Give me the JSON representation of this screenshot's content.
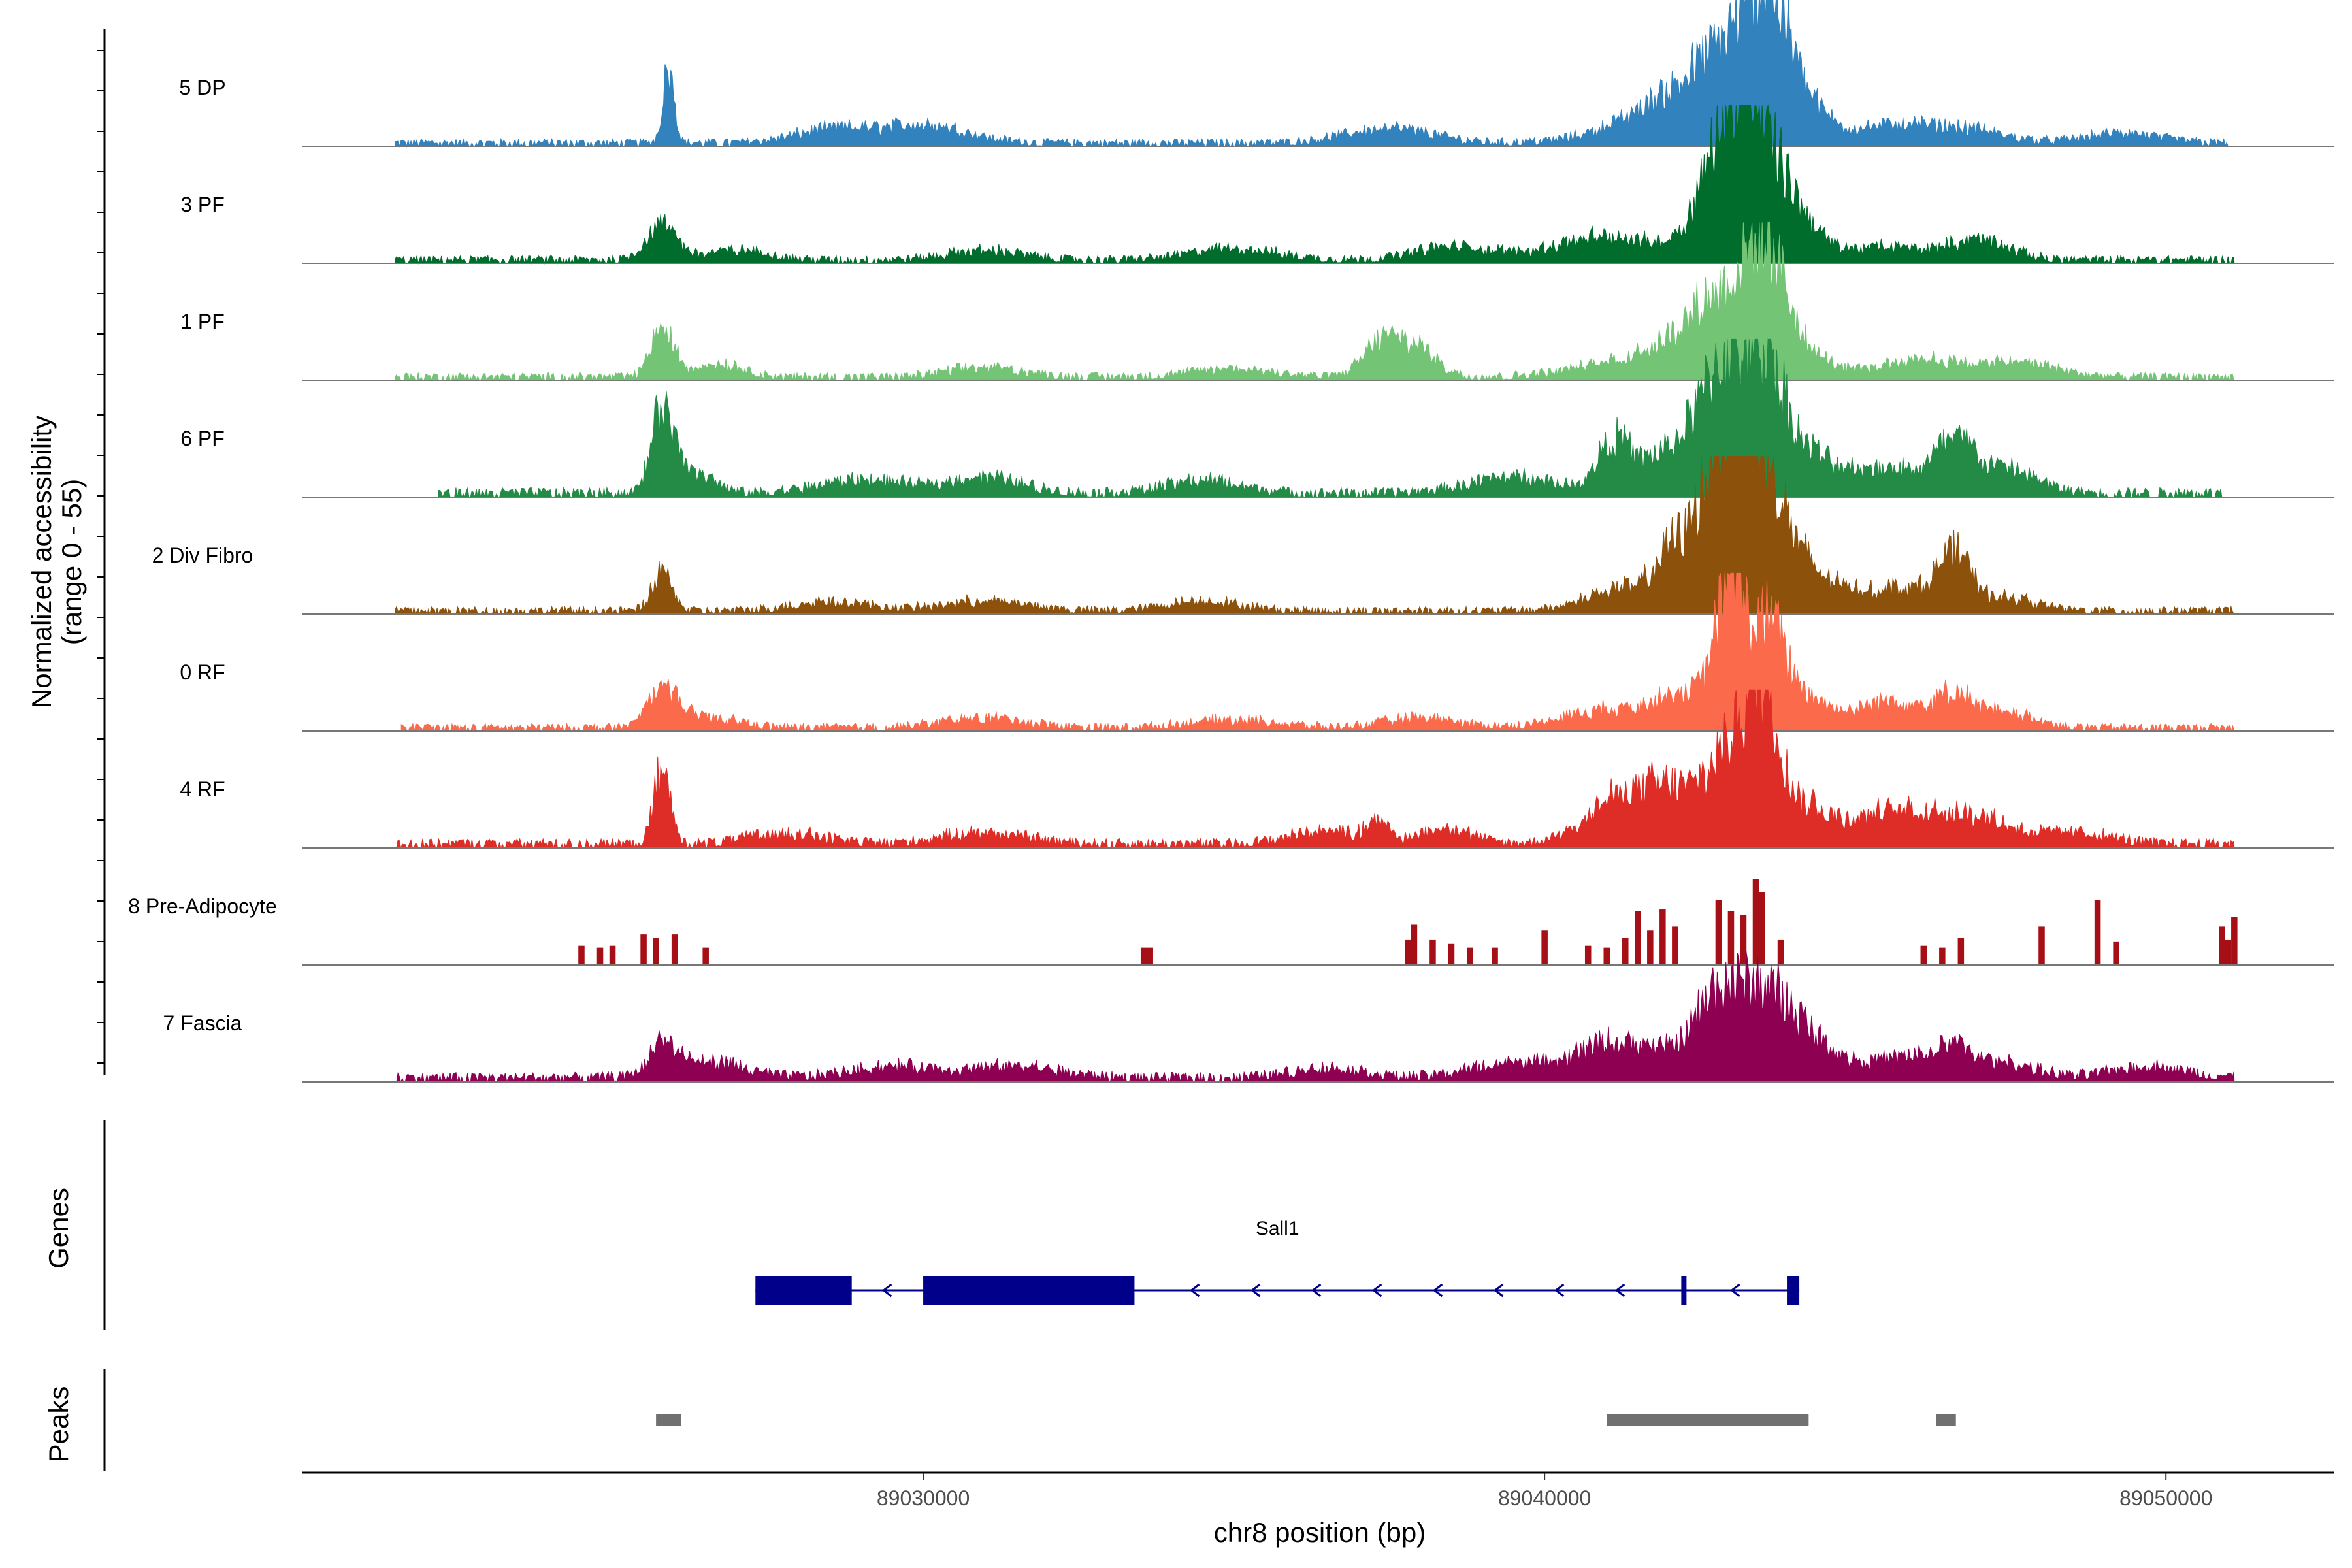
{
  "chart_data": {
    "type": "area",
    "subtype": "genome-coverage-track",
    "ylabel_lines": [
      "Normalized accessibility",
      "(range 0 - 55)"
    ],
    "y_range": [
      0,
      55
    ],
    "xlabel": "chr8 position (bp)",
    "x_range": [
      89020000,
      89052700
    ],
    "x_ticks": [
      {
        "value": 89030000,
        "label": "89030000"
      },
      {
        "value": 89040000,
        "label": "89040000"
      },
      {
        "value": 89050000,
        "label": "89050000"
      }
    ],
    "tracks": [
      {
        "name": "5 DP",
        "color": "#3182bd",
        "range": [
          89021500,
          89051000
        ],
        "peaks": [
          [
            89025900,
            45,
            90
          ],
          [
            89028500,
            8,
            600
          ],
          [
            89030000,
            11,
            700
          ],
          [
            89037500,
            9,
            700
          ],
          [
            89042000,
            18,
            900
          ],
          [
            89042800,
            27,
            700
          ],
          [
            89043300,
            32,
            500
          ],
          [
            89043600,
            40,
            300
          ],
          [
            89044000,
            22,
            500
          ],
          [
            89045600,
            10,
            600
          ],
          [
            89046800,
            8,
            600
          ],
          [
            89049300,
            6,
            600
          ]
        ],
        "noise": 4
      },
      {
        "name": "3 PF",
        "color": "#006d2c",
        "range": [
          89021500,
          89051100
        ],
        "peaks": [
          [
            89025800,
            20,
            250
          ],
          [
            89027000,
            6,
            500
          ],
          [
            89031000,
            6,
            600
          ],
          [
            89035000,
            7,
            700
          ],
          [
            89038500,
            8,
            600
          ],
          [
            89041000,
            14,
            900
          ],
          [
            89042800,
            45,
            400
          ],
          [
            89043100,
            52,
            300
          ],
          [
            89043500,
            47,
            350
          ],
          [
            89044000,
            26,
            400
          ],
          [
            89045500,
            8,
            600
          ],
          [
            89047000,
            12,
            500
          ]
        ],
        "noise": 4
      },
      {
        "name": "1 PF",
        "color": "#74c476",
        "range": [
          89021500,
          89051100
        ],
        "peaks": [
          [
            89025800,
            30,
            180
          ],
          [
            89026700,
            8,
            400
          ],
          [
            89031000,
            6,
            600
          ],
          [
            89035000,
            5,
            700
          ],
          [
            89037400,
            22,
            300
          ],
          [
            89038000,
            16,
            300
          ],
          [
            89041500,
            10,
            900
          ],
          [
            89042300,
            18,
            500
          ],
          [
            89042800,
            32,
            350
          ],
          [
            89043300,
            45,
            250
          ],
          [
            89043700,
            50,
            250
          ],
          [
            89044100,
            16,
            450
          ],
          [
            89046000,
            11,
            600
          ],
          [
            89047600,
            9,
            600
          ]
        ],
        "noise": 4
      },
      {
        "name": "6 PF",
        "color": "#238b45",
        "range": [
          89022200,
          89050900
        ],
        "peaks": [
          [
            89025800,
            50,
            170
          ],
          [
            89026300,
            14,
            300
          ],
          [
            89029000,
            8,
            700
          ],
          [
            89031000,
            10,
            600
          ],
          [
            89034500,
            8,
            600
          ],
          [
            89039500,
            10,
            700
          ],
          [
            89041100,
            30,
            250
          ],
          [
            89041800,
            18,
            400
          ],
          [
            89042500,
            33,
            350
          ],
          [
            89042900,
            44,
            300
          ],
          [
            89043200,
            37,
            300
          ],
          [
            89043600,
            57,
            250
          ],
          [
            89044100,
            27,
            450
          ],
          [
            89045500,
            16,
            600
          ],
          [
            89046600,
            27,
            300
          ],
          [
            89047400,
            15,
            500
          ]
        ],
        "noise": 5
      },
      {
        "name": "2 Div Fibro",
        "color": "#8c510a",
        "range": [
          89021500,
          89051100
        ],
        "peaks": [
          [
            89025800,
            26,
            160
          ],
          [
            89028500,
            6,
            600
          ],
          [
            89031000,
            6,
            700
          ],
          [
            89034500,
            6,
            600
          ],
          [
            89041300,
            14,
            600
          ],
          [
            89042100,
            33,
            280
          ],
          [
            89042700,
            52,
            280
          ],
          [
            89043000,
            78,
            280
          ],
          [
            89043400,
            70,
            280
          ],
          [
            89043800,
            38,
            350
          ],
          [
            89044500,
            16,
            500
          ],
          [
            89045800,
            14,
            500
          ],
          [
            89046600,
            31,
            250
          ],
          [
            89047400,
            8,
            500
          ]
        ],
        "noise": 4
      },
      {
        "name": "0 RF",
        "color": "#fb6a4a",
        "range": [
          89021600,
          89051100
        ],
        "peaks": [
          [
            89025800,
            25,
            220
          ],
          [
            89026500,
            7,
            500
          ],
          [
            89031000,
            6,
            700
          ],
          [
            89035000,
            5,
            700
          ],
          [
            89038000,
            6,
            600
          ],
          [
            89041000,
            11,
            700
          ],
          [
            89042100,
            16,
            400
          ],
          [
            89042900,
            26,
            350
          ],
          [
            89043000,
            72,
            200
          ],
          [
            89043600,
            52,
            250
          ],
          [
            89044100,
            21,
            450
          ],
          [
            89045600,
            17,
            500
          ],
          [
            89046600,
            17,
            300
          ],
          [
            89047400,
            9,
            500
          ]
        ],
        "noise": 4
      },
      {
        "name": "4 RF",
        "color": "#de2d26",
        "range": [
          89021500,
          89051100
        ],
        "peaks": [
          [
            89025800,
            45,
            130
          ],
          [
            89027800,
            7,
            600
          ],
          [
            89031000,
            7,
            700
          ],
          [
            89036500,
            8,
            600
          ],
          [
            89037300,
            13,
            150
          ],
          [
            89038400,
            10,
            400
          ],
          [
            89041000,
            19,
            500
          ],
          [
            89041700,
            18,
            500
          ],
          [
            89042300,
            22,
            500
          ],
          [
            89042900,
            34,
            300
          ],
          [
            89043300,
            55,
            250
          ],
          [
            89043600,
            55,
            200
          ],
          [
            89044100,
            26,
            450
          ],
          [
            89045400,
            16,
            500
          ],
          [
            89046300,
            14,
            500
          ],
          [
            89047100,
            12,
            500
          ],
          [
            89048500,
            7,
            600
          ]
        ],
        "noise": 5
      },
      {
        "name": "8 Pre-Adipocyte",
        "color": "#a50f15",
        "range": [
          89020000,
          89052700
        ],
        "sparse": true,
        "bars": [
          [
            89024500,
            10,
            100
          ],
          [
            89024800,
            9,
            100
          ],
          [
            89025000,
            10,
            100
          ],
          [
            89025500,
            16,
            100
          ],
          [
            89025700,
            14,
            100
          ],
          [
            89026000,
            16,
            100
          ],
          [
            89026500,
            9,
            100
          ],
          [
            89033600,
            9,
            200
          ],
          [
            89037800,
            13,
            100
          ],
          [
            89037900,
            21,
            100
          ],
          [
            89038200,
            13,
            100
          ],
          [
            89038500,
            11,
            100
          ],
          [
            89038800,
            9,
            100
          ],
          [
            89039200,
            9,
            100
          ],
          [
            89040000,
            18,
            100
          ],
          [
            89040700,
            10,
            100
          ],
          [
            89041000,
            9,
            100
          ],
          [
            89041300,
            14,
            100
          ],
          [
            89041500,
            28,
            100
          ],
          [
            89041700,
            18,
            100
          ],
          [
            89041900,
            29,
            100
          ],
          [
            89042100,
            20,
            100
          ],
          [
            89042800,
            34,
            100
          ],
          [
            89043000,
            28,
            100
          ],
          [
            89043200,
            26,
            100
          ],
          [
            89043400,
            45,
            100
          ],
          [
            89043500,
            38,
            100
          ],
          [
            89043800,
            13,
            100
          ],
          [
            89046100,
            10,
            100
          ],
          [
            89046400,
            9,
            100
          ],
          [
            89046700,
            14,
            100
          ],
          [
            89048000,
            20,
            100
          ],
          [
            89048900,
            34,
            100
          ],
          [
            89049200,
            12,
            100
          ],
          [
            89050900,
            20,
            100
          ],
          [
            89051000,
            13,
            100
          ],
          [
            89051100,
            25,
            100
          ]
        ]
      },
      {
        "name": "7 Fascia",
        "color": "#8e0152",
        "range": [
          89021500,
          89051100
        ],
        "peaks": [
          [
            89025800,
            17,
            200
          ],
          [
            89026500,
            10,
            600
          ],
          [
            89029500,
            7,
            700
          ],
          [
            89031500,
            7,
            700
          ],
          [
            89036500,
            6,
            600
          ],
          [
            89039500,
            9,
            700
          ],
          [
            89041000,
            19,
            500
          ],
          [
            89042000,
            14,
            500
          ],
          [
            89042700,
            36,
            300
          ],
          [
            89043100,
            28,
            300
          ],
          [
            89043500,
            29,
            300
          ],
          [
            89043900,
            24,
            350
          ],
          [
            89044400,
            16,
            500
          ],
          [
            89045800,
            12,
            500
          ],
          [
            89046600,
            15,
            300
          ],
          [
            89047400,
            9,
            500
          ],
          [
            89049700,
            7,
            600
          ]
        ],
        "noise": 5
      }
    ],
    "genes": {
      "title": "Genes",
      "color": "#00008b",
      "items": [
        {
          "name": "Sall1",
          "strand": "-",
          "start": 89027300,
          "end": 89044100,
          "exons": [
            [
              89027300,
              89028850
            ],
            [
              89030000,
              89033400
            ],
            [
              89042200,
              89042250
            ],
            [
              89043900,
              89044100
            ]
          ]
        }
      ]
    },
    "peaks_track": {
      "title": "Peaks",
      "color": "#707070",
      "regions": [
        [
          89025700,
          89026100
        ],
        [
          89041000,
          89044250
        ],
        [
          89046300,
          89046620
        ]
      ]
    }
  }
}
